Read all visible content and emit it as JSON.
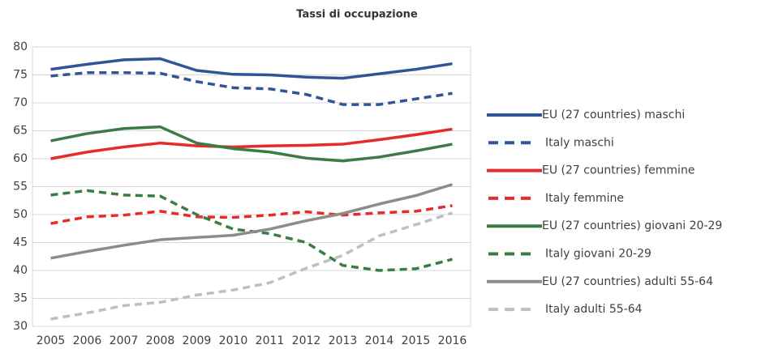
{
  "chart_data": {
    "type": "line",
    "title": "Tassi di occupazione",
    "categories": [
      "2005",
      "2006",
      "2007",
      "2008",
      "2009",
      "2010",
      "2011",
      "2012",
      "2013",
      "2014",
      "2015",
      "2016"
    ],
    "ylim": [
      30,
      80
    ],
    "yticks": [
      30,
      35,
      40,
      45,
      50,
      55,
      60,
      65,
      70,
      75,
      80
    ],
    "grid": true,
    "legend": "right",
    "series": [
      {
        "name": "EU (27 countries) maschi",
        "color": "#2f5597",
        "dash": false,
        "values": [
          76.0,
          76.9,
          77.7,
          77.9,
          75.8,
          75.1,
          75.0,
          74.6,
          74.4,
          75.2,
          76.0,
          77.0
        ]
      },
      {
        "name": "Italy maschi",
        "color": "#2f5597",
        "dash": true,
        "values": [
          74.8,
          75.4,
          75.4,
          75.3,
          73.8,
          72.7,
          72.5,
          71.5,
          69.7,
          69.7,
          70.7,
          71.7
        ]
      },
      {
        "name": "EU (27 countries) femmine",
        "color": "#e52b2b",
        "dash": false,
        "values": [
          60.0,
          61.2,
          62.1,
          62.8,
          62.3,
          62.1,
          62.3,
          62.4,
          62.6,
          63.4,
          64.3,
          65.3
        ]
      },
      {
        "name": "Italy femmine",
        "color": "#e52b2b",
        "dash": true,
        "values": [
          48.4,
          49.6,
          49.9,
          50.6,
          49.6,
          49.5,
          49.9,
          50.5,
          49.9,
          50.3,
          50.6,
          51.6
        ]
      },
      {
        "name": "EU (27 countries) giovani 20-29",
        "color": "#3a7d44",
        "dash": false,
        "values": [
          63.2,
          64.5,
          65.4,
          65.7,
          62.8,
          61.8,
          61.2,
          60.1,
          59.6,
          60.3,
          61.4,
          62.6
        ]
      },
      {
        "name": "Italy giovani 20-29",
        "color": "#3a7d44",
        "dash": true,
        "values": [
          53.5,
          54.3,
          53.5,
          53.3,
          50.0,
          47.4,
          46.6,
          45.0,
          40.9,
          40.0,
          40.3,
          42.0
        ]
      },
      {
        "name": "EU (27 countries) adulti 55-64",
        "color": "#8c8c8c",
        "dash": false,
        "values": [
          42.2,
          43.4,
          44.5,
          45.5,
          45.9,
          46.3,
          47.4,
          48.9,
          50.2,
          51.9,
          53.4,
          55.4
        ]
      },
      {
        "name": "Italy adulti 55-64",
        "color": "#bfbfbf",
        "dash": true,
        "values": [
          31.3,
          32.4,
          33.7,
          34.3,
          35.6,
          36.5,
          37.8,
          40.4,
          42.7,
          46.2,
          48.2,
          50.3
        ]
      }
    ]
  }
}
